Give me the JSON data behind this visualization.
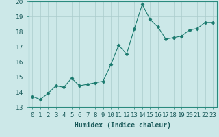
{
  "x": [
    0,
    1,
    2,
    3,
    4,
    5,
    6,
    7,
    8,
    9,
    10,
    11,
    12,
    13,
    14,
    15,
    16,
    17,
    18,
    19,
    20,
    21,
    22,
    23
  ],
  "y": [
    13.7,
    13.5,
    13.9,
    14.4,
    14.3,
    14.9,
    14.4,
    14.5,
    14.6,
    14.7,
    15.8,
    17.1,
    16.5,
    18.2,
    19.8,
    18.8,
    18.3,
    17.5,
    17.6,
    17.7,
    18.1,
    18.2,
    18.6,
    18.6
  ],
  "line_color": "#1a7a6e",
  "marker": "D",
  "marker_size": 2.5,
  "bg_color": "#cce8e8",
  "grid_color": "#aacccc",
  "xlabel": "Humidex (Indice chaleur)",
  "ylim": [
    13,
    20
  ],
  "xlim": [
    -0.5,
    23.5
  ],
  "yticks": [
    13,
    14,
    15,
    16,
    17,
    18,
    19,
    20
  ],
  "xticks": [
    0,
    1,
    2,
    3,
    4,
    5,
    6,
    7,
    8,
    9,
    10,
    11,
    12,
    13,
    14,
    15,
    16,
    17,
    18,
    19,
    20,
    21,
    22,
    23
  ],
  "xtick_labels": [
    "0",
    "1",
    "2",
    "3",
    "4",
    "5",
    "6",
    "7",
    "8",
    "9",
    "10",
    "11",
    "12",
    "13",
    "14",
    "15",
    "16",
    "17",
    "18",
    "19",
    "20",
    "21",
    "22",
    "23"
  ],
  "label_fontsize": 7,
  "tick_fontsize": 6.5
}
